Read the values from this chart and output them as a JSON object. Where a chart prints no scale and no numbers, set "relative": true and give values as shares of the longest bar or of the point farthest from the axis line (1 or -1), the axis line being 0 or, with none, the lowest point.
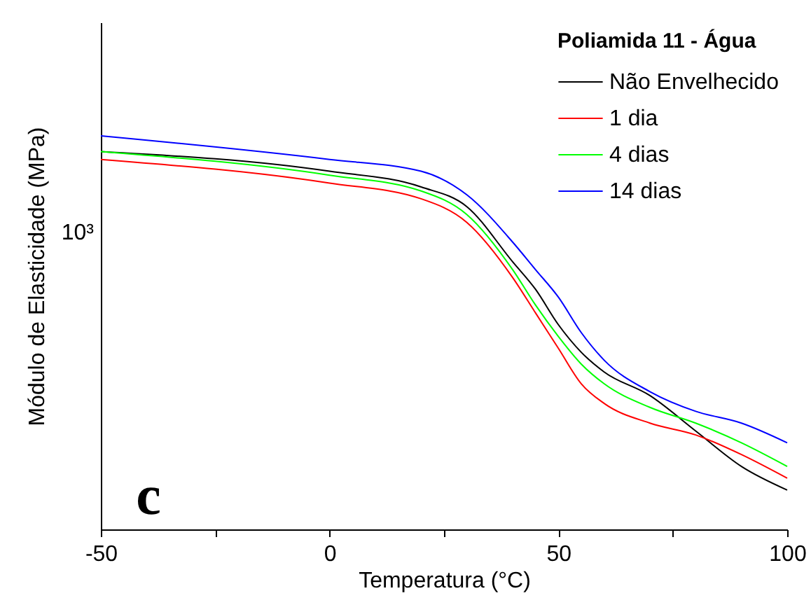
{
  "chart_data": {
    "type": "line",
    "relative": true,
    "xlabel": "Temperatura (°C)",
    "ylabel": "Módulo de Elasticidade (MPa)",
    "legend_title": "Poliamida 11 - Água",
    "legend": "top right",
    "grid": false,
    "line_style": "solid",
    "marker": "none",
    "x": [
      -50,
      0,
      20,
      30,
      40,
      45,
      50,
      55,
      60,
      70,
      80,
      90,
      100
    ],
    "series": [
      {
        "name": "Não Envelhecido",
        "color": "#000000",
        "values": [
          0.96,
          0.91,
          0.87,
          0.82,
          0.68,
          0.61,
          0.52,
          0.45,
          0.4,
          0.34,
          0.25,
          0.16,
          0.1
        ]
      },
      {
        "name": "1 dia",
        "color": "#ff0000",
        "values": [
          0.94,
          0.88,
          0.84,
          0.78,
          0.64,
          0.55,
          0.46,
          0.37,
          0.32,
          0.27,
          0.24,
          0.19,
          0.13
        ]
      },
      {
        "name": "4 dias",
        "color": "#00ff00",
        "values": [
          0.96,
          0.9,
          0.86,
          0.8,
          0.66,
          0.57,
          0.49,
          0.42,
          0.37,
          0.31,
          0.27,
          0.22,
          0.16
        ]
      },
      {
        "name": "14 dias",
        "color": "#0000ff",
        "values": [
          1,
          0.94,
          0.91,
          0.85,
          0.73,
          0.66,
          0.59,
          0.5,
          0.43,
          0.35,
          0.3,
          0.27,
          0.22
        ]
      }
    ],
    "xlim": [
      -50,
      100
    ],
    "xticks": [
      -50,
      {
        "value": -25,
        "label": null
      },
      0,
      {
        "value": 25,
        "label": null
      },
      50,
      {
        "value": 75,
        "label": null
      },
      100
    ],
    "annotations": [
      "10³",
      "c"
    ]
  }
}
